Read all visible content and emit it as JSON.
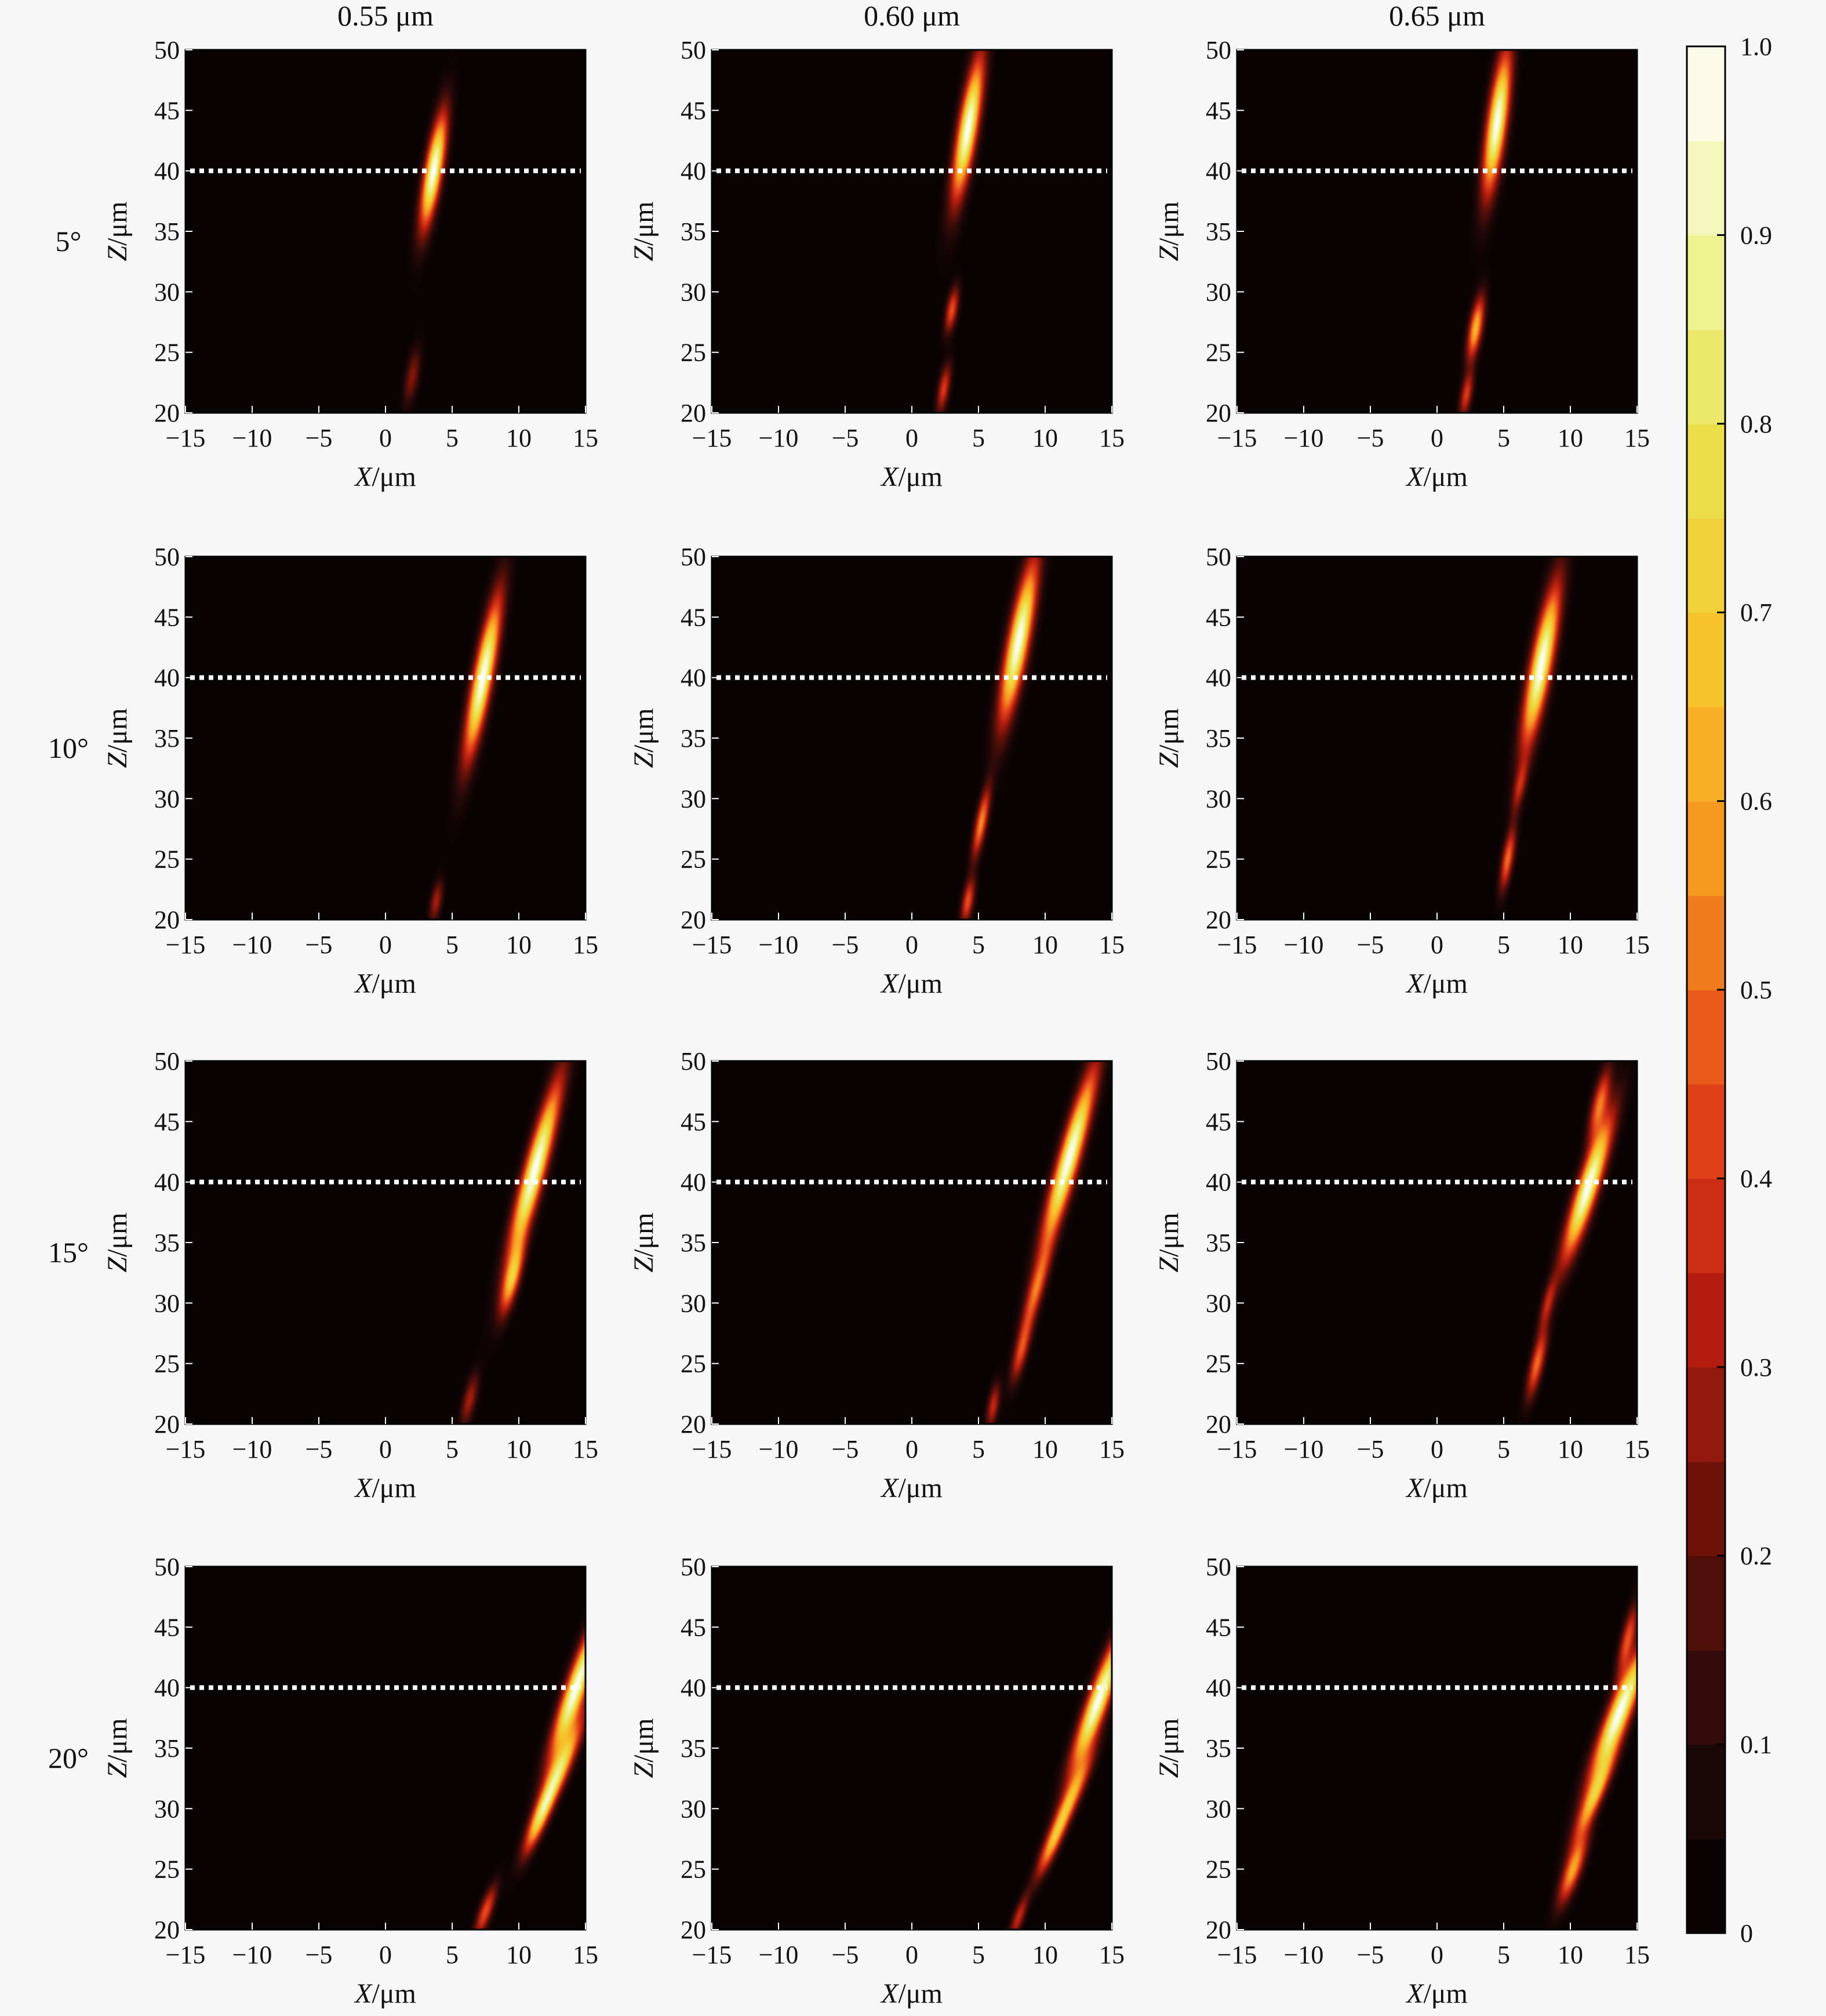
{
  "chart_data": {
    "type": "heatmap",
    "colorbar": {
      "min": 0,
      "max": 1.0,
      "ticks": [
        "0",
        "0.1",
        "0.2",
        "0.3",
        "0.4",
        "0.5",
        "0.6",
        "0.7",
        "0.8",
        "0.9",
        "1.0"
      ],
      "colormap": [
        "#000000",
        "#2a0a0a",
        "#6b1208",
        "#b81e10",
        "#e6471b",
        "#f5901f",
        "#f7c12a",
        "#eae04a",
        "#eff39a",
        "#ffffff"
      ]
    },
    "columns": [
      "0.55 μm",
      "0.60 μm",
      "0.65 μm"
    ],
    "rows": [
      "5°",
      "10°",
      "15°",
      "20°"
    ],
    "x_axis": {
      "label_var": "X",
      "label_unit": "/μm",
      "range": [
        -15,
        15
      ],
      "ticks": [
        "−15",
        "−10",
        "−5",
        "0",
        "5",
        "10",
        "15"
      ],
      "tick_values": [
        -15,
        -10,
        -5,
        0,
        5,
        10,
        15
      ]
    },
    "y_axis": {
      "label_var": "Z",
      "label_unit": "/μm",
      "range": [
        20,
        50
      ],
      "ticks": [
        "20",
        "25",
        "30",
        "35",
        "40",
        "45",
        "50"
      ],
      "tick_values": [
        20,
        25,
        30,
        35,
        40,
        45,
        50
      ]
    },
    "reference_line_z": 40,
    "panels": [
      {
        "row": 0,
        "col": 0,
        "spots": [
          {
            "x": 3.6,
            "z": 40,
            "sx": 0.45,
            "sz": 3.2,
            "slope": 0.15,
            "v": 1.0
          },
          {
            "x": 2.0,
            "z": 23,
            "sx": 0.35,
            "sz": 1.6,
            "slope": 0.15,
            "v": 0.25
          }
        ]
      },
      {
        "row": 0,
        "col": 1,
        "spots": [
          {
            "x": 4.2,
            "z": 43.5,
            "sx": 0.5,
            "sz": 4.0,
            "slope": 0.15,
            "v": 1.0
          },
          {
            "x": 3.0,
            "z": 28.5,
            "sx": 0.3,
            "sz": 1.3,
            "slope": 0.15,
            "v": 0.45
          },
          {
            "x": 2.4,
            "z": 22,
            "sx": 0.3,
            "sz": 1.4,
            "slope": 0.15,
            "v": 0.4
          }
        ]
      },
      {
        "row": 0,
        "col": 2,
        "spots": [
          {
            "x": 4.5,
            "z": 44,
            "sx": 0.5,
            "sz": 4.0,
            "slope": 0.12,
            "v": 1.0
          },
          {
            "x": 2.9,
            "z": 27,
            "sx": 0.35,
            "sz": 1.8,
            "slope": 0.15,
            "v": 0.65
          },
          {
            "x": 2.2,
            "z": 21.5,
            "sx": 0.3,
            "sz": 1.3,
            "slope": 0.15,
            "v": 0.4
          }
        ]
      },
      {
        "row": 1,
        "col": 0,
        "spots": [
          {
            "x": 7.3,
            "z": 40,
            "sx": 0.5,
            "sz": 4.5,
            "slope": 0.17,
            "v": 1.0
          },
          {
            "x": 3.8,
            "z": 21.5,
            "sx": 0.3,
            "sz": 1.2,
            "slope": 0.15,
            "v": 0.3
          }
        ]
      },
      {
        "row": 1,
        "col": 1,
        "spots": [
          {
            "x": 8.0,
            "z": 43,
            "sx": 0.55,
            "sz": 4.5,
            "slope": 0.17,
            "v": 1.0
          },
          {
            "x": 5.2,
            "z": 28,
            "sx": 0.3,
            "sz": 2.0,
            "slope": 0.17,
            "v": 0.55
          },
          {
            "x": 4.2,
            "z": 21.5,
            "sx": 0.3,
            "sz": 1.3,
            "slope": 0.15,
            "v": 0.45
          }
        ]
      },
      {
        "row": 1,
        "col": 2,
        "spots": [
          {
            "x": 7.8,
            "z": 41,
            "sx": 0.55,
            "sz": 4.5,
            "slope": 0.17,
            "v": 1.0
          },
          {
            "x": 5.3,
            "z": 25,
            "sx": 0.3,
            "sz": 1.8,
            "slope": 0.15,
            "v": 0.5
          },
          {
            "x": 6.2,
            "z": 31,
            "sx": 0.3,
            "sz": 1.5,
            "slope": 0.18,
            "v": 0.3
          }
        ]
      },
      {
        "row": 2,
        "col": 0,
        "spots": [
          {
            "x": 11.2,
            "z": 41,
            "sx": 0.55,
            "sz": 5.0,
            "slope": 0.24,
            "v": 1.0
          },
          {
            "x": 9.5,
            "z": 32,
            "sx": 0.4,
            "sz": 2.0,
            "slope": 0.22,
            "v": 0.6
          },
          {
            "x": 6.3,
            "z": 22,
            "sx": 0.35,
            "sz": 1.5,
            "slope": 0.2,
            "v": 0.3
          }
        ]
      },
      {
        "row": 2,
        "col": 1,
        "spots": [
          {
            "x": 11.8,
            "z": 42,
            "sx": 0.55,
            "sz": 5.0,
            "slope": 0.25,
            "v": 1.0
          },
          {
            "x": 9.3,
            "z": 31,
            "sx": 0.4,
            "sz": 2.5,
            "slope": 0.25,
            "v": 0.45
          },
          {
            "x": 8.2,
            "z": 26,
            "sx": 0.35,
            "sz": 1.8,
            "slope": 0.22,
            "v": 0.4
          },
          {
            "x": 6.1,
            "z": 21.5,
            "sx": 0.3,
            "sz": 1.3,
            "slope": 0.15,
            "v": 0.35
          }
        ]
      },
      {
        "row": 2,
        "col": 2,
        "spots": [
          {
            "x": 11.3,
            "z": 39.5,
            "sx": 0.55,
            "sz": 4.0,
            "slope": 0.28,
            "v": 1.0
          },
          {
            "x": 12.2,
            "z": 46.5,
            "sx": 0.4,
            "sz": 2.0,
            "slope": 0.2,
            "v": 0.5
          },
          {
            "x": 7.5,
            "z": 25,
            "sx": 0.35,
            "sz": 2.0,
            "slope": 0.2,
            "v": 0.5
          },
          {
            "x": 8.3,
            "z": 30,
            "sx": 0.3,
            "sz": 1.5,
            "slope": 0.22,
            "v": 0.3
          }
        ]
      },
      {
        "row": 3,
        "col": 0,
        "spots": [
          {
            "x": 14.3,
            "z": 40,
            "sx": 0.55,
            "sz": 4.0,
            "slope": 0.3,
            "v": 1.0
          },
          {
            "x": 13.0,
            "z": 33,
            "sx": 0.5,
            "sz": 3.0,
            "slope": 0.38,
            "v": 0.75
          },
          {
            "x": 11.5,
            "z": 29,
            "sx": 0.4,
            "sz": 2.0,
            "slope": 0.35,
            "v": 0.5
          },
          {
            "x": 7.5,
            "z": 21.5,
            "sx": 0.35,
            "sz": 1.5,
            "slope": 0.3,
            "v": 0.45
          }
        ]
      },
      {
        "row": 3,
        "col": 1,
        "spots": [
          {
            "x": 14.0,
            "z": 39,
            "sx": 0.55,
            "sz": 4.0,
            "slope": 0.32,
            "v": 1.0
          },
          {
            "x": 12.0,
            "z": 31,
            "sx": 0.45,
            "sz": 2.5,
            "slope": 0.4,
            "v": 0.55
          },
          {
            "x": 10.5,
            "z": 27,
            "sx": 0.4,
            "sz": 2.0,
            "slope": 0.38,
            "v": 0.5
          },
          {
            "x": 8.0,
            "z": 21,
            "sx": 0.3,
            "sz": 1.3,
            "slope": 0.3,
            "v": 0.35
          }
        ]
      },
      {
        "row": 3,
        "col": 2,
        "spots": [
          {
            "x": 13.7,
            "z": 38,
            "sx": 0.6,
            "sz": 4.0,
            "slope": 0.35,
            "v": 1.0
          },
          {
            "x": 11.8,
            "z": 31,
            "sx": 0.45,
            "sz": 2.5,
            "slope": 0.38,
            "v": 0.6
          },
          {
            "x": 10.2,
            "z": 25,
            "sx": 0.45,
            "sz": 2.0,
            "slope": 0.3,
            "v": 0.6
          },
          {
            "x": 14.3,
            "z": 44,
            "sx": 0.35,
            "sz": 2.0,
            "slope": 0.2,
            "v": 0.45
          }
        ]
      }
    ]
  }
}
